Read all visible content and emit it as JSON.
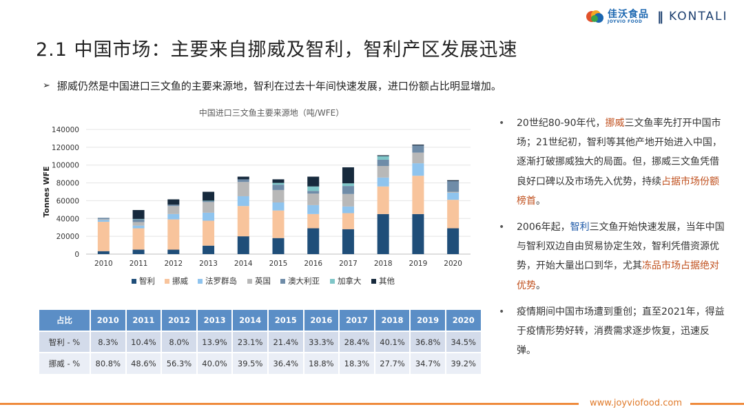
{
  "logo": {
    "brand_cn": "佳沃食品",
    "brand_sub": "JOYVIO FOOD",
    "separator": "‖",
    "brand_en": "KONTALI"
  },
  "title": "2.1  中国市场：主要来自挪威及智利，智利产区发展迅速",
  "subtitle": {
    "arrow": "➢",
    "text": "挪威仍然是中国进口三文鱼的主要来源地，智利在过去十年间快速发展，进口份额占比明显增加。"
  },
  "colors": {
    "chile": "#1f4e79",
    "norway": "#f8c49c",
    "faroe": "#8fc4ee",
    "uk": "#b8b8b8",
    "australia": "#6f8ca8",
    "canada": "#7fc6c8",
    "other": "#172a3d",
    "accent": "#ef8a3c",
    "table_header": "#5b8ec6"
  },
  "chart_data": {
    "type": "bar",
    "stacked": true,
    "title": "中国进口三文鱼主要来源地（吨/WFE）",
    "ylabel": "Tonnes WFE",
    "xlabel": "",
    "ylim": [
      0,
      140000
    ],
    "yticks": [
      "0",
      "20000",
      "40000",
      "60000",
      "80000",
      "100000",
      "120000",
      "140000"
    ],
    "legend_position": "bottom",
    "categories": [
      "2010",
      "2011",
      "2012",
      "2013",
      "2014",
      "2015",
      "2016",
      "2017",
      "2018",
      "2019",
      "2020"
    ],
    "series": [
      {
        "name": "智利",
        "color_key": "chile",
        "values": [
          3300,
          5000,
          5000,
          9500,
          20000,
          18000,
          29000,
          28000,
          45000,
          45000,
          29000
        ]
      },
      {
        "name": "挪威",
        "color_key": "norway",
        "values": [
          33000,
          24000,
          34000,
          28000,
          34000,
          31000,
          16000,
          18000,
          31000,
          43000,
          32000
        ]
      },
      {
        "name": "法罗群岛",
        "color_key": "faroe",
        "values": [
          2000,
          3000,
          6000,
          9000,
          11000,
          9000,
          10000,
          7500,
          10000,
          14000,
          8000
        ]
      },
      {
        "name": "英国",
        "color_key": "uk",
        "values": [
          1000,
          4000,
          9000,
          12000,
          16000,
          14000,
          13000,
          14000,
          13000,
          12000,
          1000
        ]
      },
      {
        "name": "澳大利亚",
        "color_key": "australia",
        "values": [
          1500,
          3000,
          1500,
          1000,
          3000,
          6000,
          3000,
          9000,
          7000,
          8000,
          12000
        ]
      },
      {
        "name": "加拿大",
        "color_key": "canada",
        "values": [
          0,
          500,
          0,
          500,
          0,
          2000,
          5000,
          3000,
          4000,
          0,
          0
        ]
      },
      {
        "name": "其他",
        "color_key": "other",
        "values": [
          0,
          10000,
          6000,
          10000,
          3000,
          4000,
          11000,
          18000,
          1000,
          1000,
          1000
        ]
      }
    ]
  },
  "table": {
    "header_label": "占比",
    "years": [
      "2010",
      "2011",
      "2012",
      "2013",
      "2014",
      "2015",
      "2016",
      "2017",
      "2018",
      "2019",
      "2020"
    ],
    "rows": [
      {
        "label": "智利 - %",
        "values": [
          "8.3%",
          "10.4%",
          "8.0%",
          "13.9%",
          "23.1%",
          "21.4%",
          "33.3%",
          "28.4%",
          "40.1%",
          "36.8%",
          "34.5%"
        ]
      },
      {
        "label": "挪威 - %",
        "values": [
          "80.8%",
          "48.6%",
          "56.3%",
          "40.0%",
          "39.5%",
          "36.4%",
          "18.8%",
          "18.3%",
          "27.7%",
          "34.7%",
          "39.2%"
        ]
      }
    ]
  },
  "bullets": [
    {
      "dot": "•",
      "t1": "20世纪80-90年代，",
      "h1": "挪威",
      "t2": "三文鱼率先打开中国市场；21世纪初，智利等其他产地开始进入中国，逐渐打破挪威独大的局面。但，挪威三文鱼凭借良好口碑以及市场先入优势，持续",
      "h2": "占据市场份额榜首",
      "t3": "。"
    },
    {
      "dot": "•",
      "t1": "2006年起，",
      "h1": "智利",
      "t2": "三文鱼开始快速发展，当年中国与智利双边自由贸易协定生效，智利凭借资源优势，开始大量出口到华，尤其",
      "h2": "冻品市场占据绝对优势",
      "t3": "。"
    },
    {
      "dot": "•",
      "t1": "疫情期间中国市场遭到重创；直至2021年，得益于疫情形势好转，消费需求逐步恢复，迅速反弹。",
      "h1": "",
      "t2": "",
      "h2": "",
      "t3": ""
    }
  ],
  "footer": {
    "url": "www.joyviofood.com"
  }
}
